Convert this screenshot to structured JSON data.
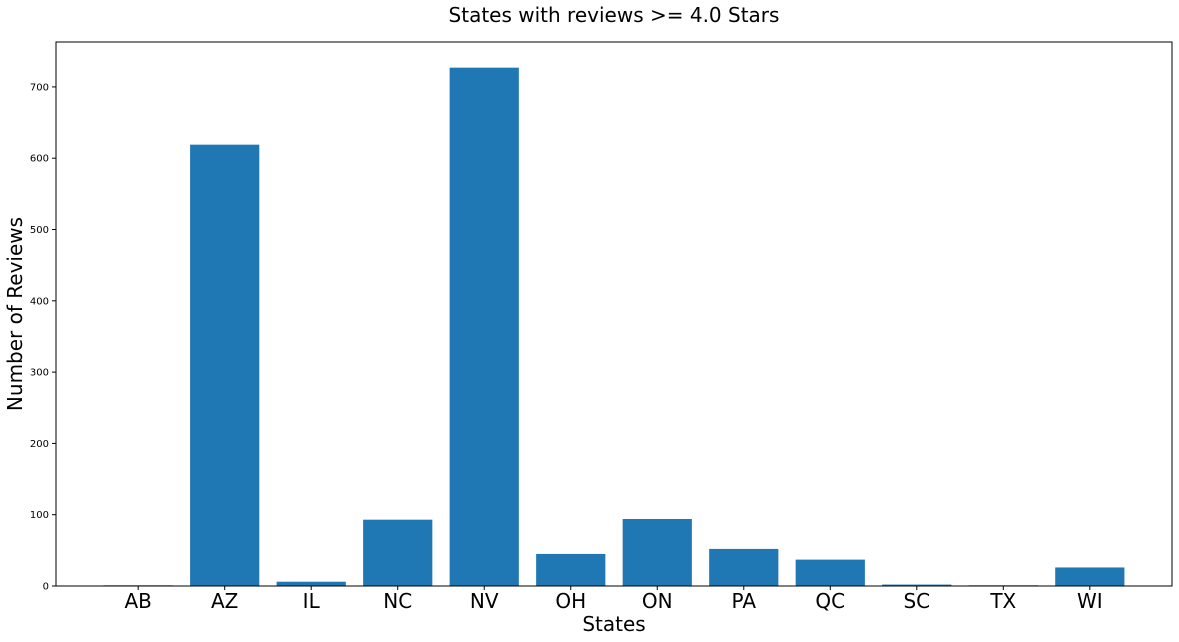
{
  "chart_data": {
    "type": "bar",
    "title": "States with reviews >= 4.0 Stars",
    "xlabel": "States",
    "ylabel": "Number of Reviews",
    "categories": [
      "AB",
      "AZ",
      "IL",
      "NC",
      "NV",
      "OH",
      "ON",
      "PA",
      "QC",
      "SC",
      "TX",
      "WI"
    ],
    "values": [
      1,
      619,
      6,
      93,
      727,
      45,
      94,
      52,
      37,
      2,
      1,
      26
    ],
    "yticks": [
      0,
      100,
      200,
      300,
      400,
      500,
      600,
      700
    ],
    "ylim": [
      0,
      763
    ],
    "grid": false,
    "legend": "none",
    "colors": {
      "bar": "#1f77b4",
      "axis": "#000000",
      "background": "#ffffff"
    }
  }
}
